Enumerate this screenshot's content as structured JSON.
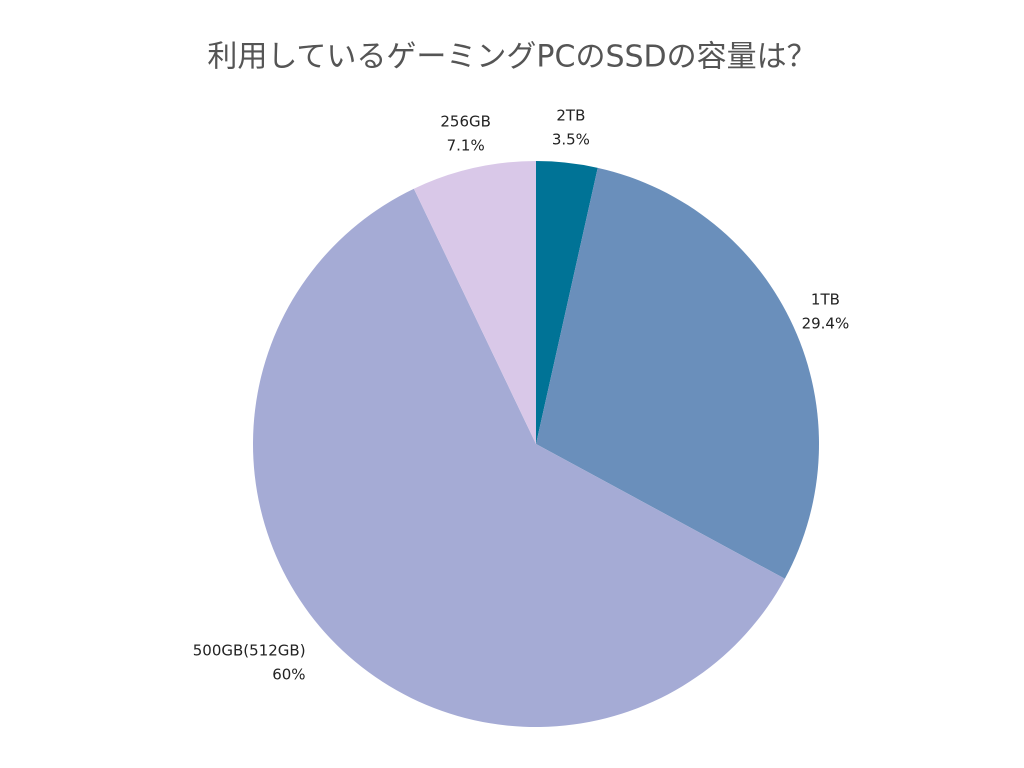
{
  "chart_data": {
    "type": "pie",
    "title": "利用しているゲーミングPCのSSDの容量は？",
    "categories": [
      "2TB",
      "1TB",
      "500GB(512GB)",
      "256GB"
    ],
    "values": [
      3.5,
      29.4,
      60,
      7.1
    ],
    "value_labels": [
      "3.5%",
      "29.4%",
      "60%",
      "7.1%"
    ],
    "colors": [
      "#007396",
      "#6a8fbb",
      "#a5abd5",
      "#d9c8e8"
    ]
  }
}
